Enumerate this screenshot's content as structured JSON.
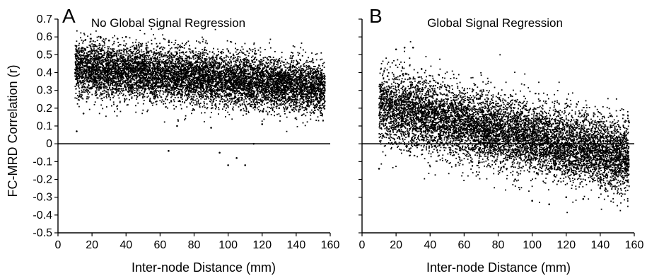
{
  "figure": {
    "shared_ylabel": "FC-MRD Correlation (r)"
  },
  "chart_data": [
    {
      "type": "scatter",
      "panel": "A",
      "title": "No Global Signal Regression",
      "xlabel": "Inter-node Distance (mm)",
      "ylabel": "FC-MRD Correlation (r)",
      "xlim": [
        0,
        160
      ],
      "ylim": [
        -0.5,
        0.7
      ],
      "xticks": [
        "0",
        "20",
        "40",
        "60",
        "80",
        "100",
        "120",
        "140",
        "160"
      ],
      "yticks": [
        "0.7",
        "0.6",
        "0.5",
        "0.4",
        "0.3",
        "0.2",
        "0.1",
        "0",
        "-0.1",
        "-0.2",
        "-0.3",
        "-0.4",
        "-0.5"
      ],
      "reference_line_y": 0,
      "grid": false,
      "point_color": "#000000",
      "point_cloud": {
        "x_range": [
          10,
          157
        ],
        "trend_start": [
          20,
          0.42
        ],
        "trend_end": [
          150,
          0.32
        ],
        "spread_sd": 0.075,
        "approx_points": 9000
      },
      "series": [
        {
          "values": [
            [
              11,
              0.07
            ],
            [
              15,
              0.17
            ],
            [
              18,
              0.47
            ],
            [
              22,
              0.55
            ],
            [
              25,
              0.6
            ],
            [
              30,
              0.58
            ],
            [
              35,
              0.59
            ],
            [
              40,
              0.6
            ],
            [
              45,
              0.54
            ],
            [
              50,
              0.5
            ],
            [
              55,
              0.36
            ],
            [
              60,
              0.32
            ],
            [
              65,
              -0.04
            ],
            [
              70,
              0.1
            ],
            [
              80,
              0.19
            ],
            [
              90,
              0.09
            ],
            [
              95,
              -0.05
            ],
            [
              100,
              -0.12
            ],
            [
              105,
              -0.08
            ],
            [
              110,
              -0.12
            ],
            [
              115,
              0.0
            ],
            [
              120,
              0.11
            ],
            [
              130,
              0.2
            ],
            [
              140,
              0.25
            ],
            [
              150,
              0.33
            ],
            [
              156,
              0.35
            ]
          ]
        }
      ]
    },
    {
      "type": "scatter",
      "panel": "B",
      "title": "Global Signal Regression",
      "xlabel": "Inter-node Distance (mm)",
      "ylabel": "",
      "xlim": [
        0,
        160
      ],
      "ylim": [
        -0.5,
        0.7
      ],
      "xticks": [
        "0",
        "20",
        "40",
        "60",
        "80",
        "100",
        "120",
        "140",
        "160"
      ],
      "yticks": [],
      "reference_line_y": 0,
      "grid": false,
      "point_color": "#000000",
      "point_cloud": {
        "x_range": [
          10,
          157
        ],
        "trend_start": [
          15,
          0.2
        ],
        "trend_end": [
          150,
          -0.07
        ],
        "spread_sd": 0.1,
        "approx_points": 9000
      },
      "series": [
        {
          "values": [
            [
              10,
              -0.14
            ],
            [
              15,
              0.38
            ],
            [
              20,
              0.53
            ],
            [
              25,
              0.54
            ],
            [
              30,
              0.54
            ],
            [
              35,
              0.42
            ],
            [
              40,
              0.35
            ],
            [
              50,
              0.25
            ],
            [
              60,
              0.3
            ],
            [
              70,
              0.1
            ],
            [
              80,
              0.0
            ],
            [
              90,
              -0.2
            ],
            [
              100,
              -0.32
            ],
            [
              110,
              -0.34
            ],
            [
              120,
              -0.3
            ],
            [
              130,
              -0.31
            ],
            [
              140,
              -0.25
            ],
            [
              150,
              0.08
            ],
            [
              157,
              0.12
            ]
          ]
        }
      ]
    }
  ]
}
